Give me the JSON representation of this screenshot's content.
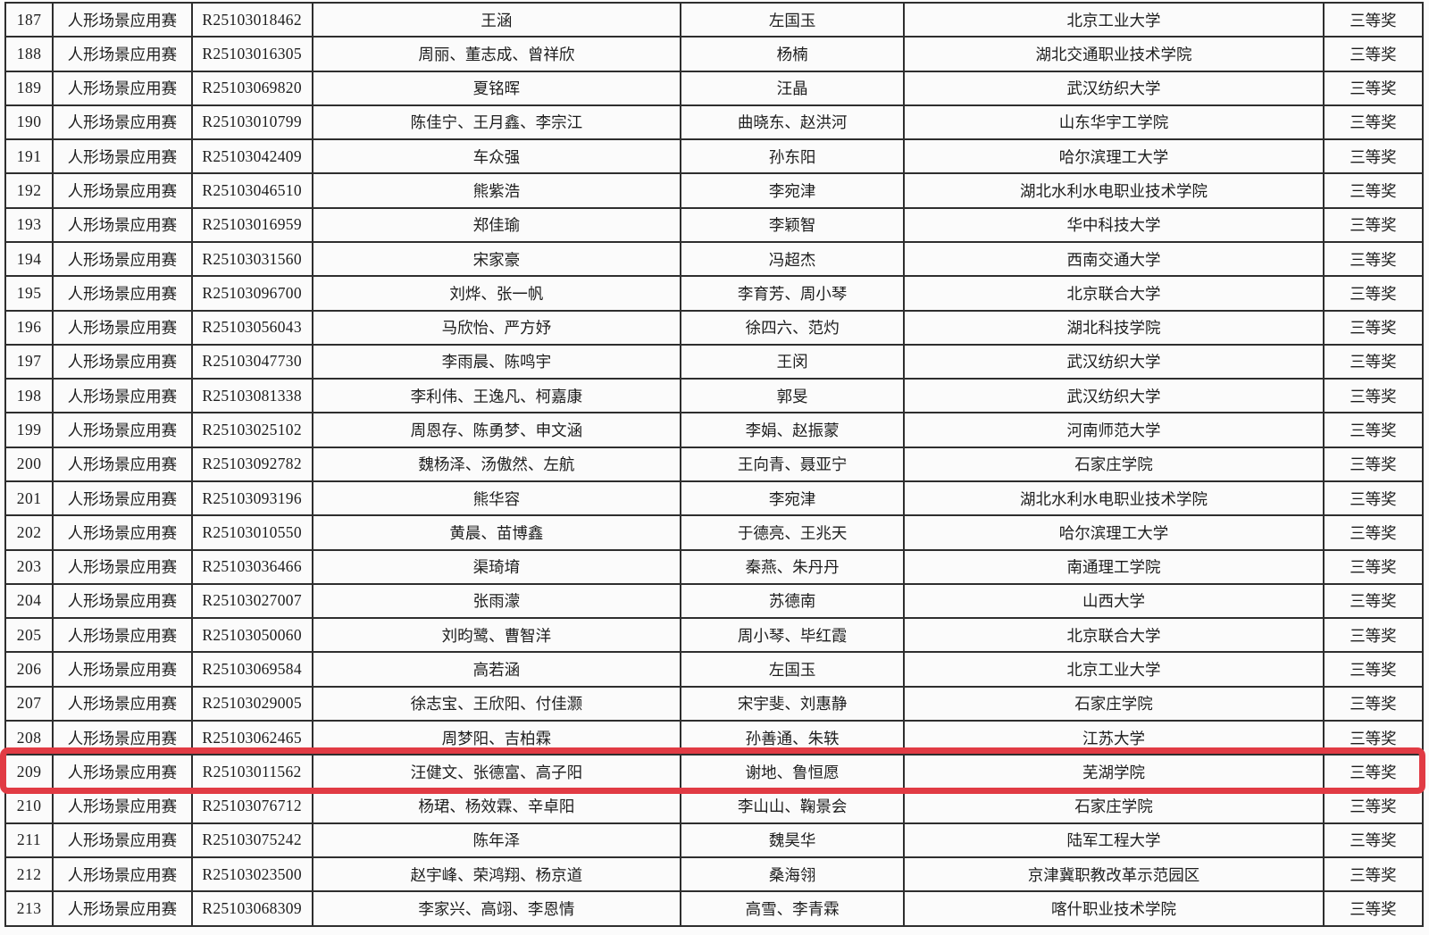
{
  "page": {
    "background_color": "#fbfbfb",
    "border_color": "#2e2e2e",
    "text_color": "#1d1d1d"
  },
  "highlight": {
    "row_no": "209",
    "border_color": "#e13b44"
  },
  "table": {
    "columns": [
      {
        "key": "no",
        "name": "row-number"
      },
      {
        "key": "category",
        "name": "competition-category"
      },
      {
        "key": "id",
        "name": "registration-id"
      },
      {
        "key": "participants",
        "name": "participants"
      },
      {
        "key": "advisors",
        "name": "advisors"
      },
      {
        "key": "institution",
        "name": "institution"
      },
      {
        "key": "award",
        "name": "award"
      }
    ],
    "rows": [
      {
        "no": "187",
        "category": "人形场景应用赛",
        "id": "R25103018462",
        "participants": "王涵",
        "advisors": "左国玉",
        "institution": "北京工业大学",
        "award": "三等奖"
      },
      {
        "no": "188",
        "category": "人形场景应用赛",
        "id": "R25103016305",
        "participants": "周丽、董志成、曾祥欣",
        "advisors": "杨楠",
        "institution": "湖北交通职业技术学院",
        "award": "三等奖"
      },
      {
        "no": "189",
        "category": "人形场景应用赛",
        "id": "R25103069820",
        "participants": "夏铭晖",
        "advisors": "汪晶",
        "institution": "武汉纺织大学",
        "award": "三等奖"
      },
      {
        "no": "190",
        "category": "人形场景应用赛",
        "id": "R25103010799",
        "participants": "陈佳宁、王月鑫、李宗江",
        "advisors": "曲晓东、赵洪河",
        "institution": "山东华宇工学院",
        "award": "三等奖"
      },
      {
        "no": "191",
        "category": "人形场景应用赛",
        "id": "R25103042409",
        "participants": "车众强",
        "advisors": "孙东阳",
        "institution": "哈尔滨理工大学",
        "award": "三等奖"
      },
      {
        "no": "192",
        "category": "人形场景应用赛",
        "id": "R25103046510",
        "participants": "熊紫浩",
        "advisors": "李宛津",
        "institution": "湖北水利水电职业技术学院",
        "award": "三等奖"
      },
      {
        "no": "193",
        "category": "人形场景应用赛",
        "id": "R25103016959",
        "participants": "郑佳瑜",
        "advisors": "李颖智",
        "institution": "华中科技大学",
        "award": "三等奖"
      },
      {
        "no": "194",
        "category": "人形场景应用赛",
        "id": "R25103031560",
        "participants": "宋家豪",
        "advisors": "冯超杰",
        "institution": "西南交通大学",
        "award": "三等奖"
      },
      {
        "no": "195",
        "category": "人形场景应用赛",
        "id": "R25103096700",
        "participants": "刘烨、张一帆",
        "advisors": "李育芳、周小琴",
        "institution": "北京联合大学",
        "award": "三等奖"
      },
      {
        "no": "196",
        "category": "人形场景应用赛",
        "id": "R25103056043",
        "participants": "马欣怡、严方妤",
        "advisors": "徐四六、范灼",
        "institution": "湖北科技学院",
        "award": "三等奖"
      },
      {
        "no": "197",
        "category": "人形场景应用赛",
        "id": "R25103047730",
        "participants": "李雨晨、陈鸣宇",
        "advisors": "王闵",
        "institution": "武汉纺织大学",
        "award": "三等奖"
      },
      {
        "no": "198",
        "category": "人形场景应用赛",
        "id": "R25103081338",
        "participants": "李利伟、王逸凡、柯嘉康",
        "advisors": "郭旻",
        "institution": "武汉纺织大学",
        "award": "三等奖"
      },
      {
        "no": "199",
        "category": "人形场景应用赛",
        "id": "R25103025102",
        "participants": "周恩存、陈勇梦、申文涵",
        "advisors": "李娟、赵振蒙",
        "institution": "河南师范大学",
        "award": "三等奖"
      },
      {
        "no": "200",
        "category": "人形场景应用赛",
        "id": "R25103092782",
        "participants": "魏杨泽、汤傲然、左航",
        "advisors": "王向青、聂亚宁",
        "institution": "石家庄学院",
        "award": "三等奖"
      },
      {
        "no": "201",
        "category": "人形场景应用赛",
        "id": "R25103093196",
        "participants": "熊华容",
        "advisors": "李宛津",
        "institution": "湖北水利水电职业技术学院",
        "award": "三等奖"
      },
      {
        "no": "202",
        "category": "人形场景应用赛",
        "id": "R25103010550",
        "participants": "黄晨、苗博鑫",
        "advisors": "于德亮、王兆天",
        "institution": "哈尔滨理工大学",
        "award": "三等奖"
      },
      {
        "no": "203",
        "category": "人形场景应用赛",
        "id": "R25103036466",
        "participants": "渠琦堉",
        "advisors": "秦燕、朱丹丹",
        "institution": "南通理工学院",
        "award": "三等奖"
      },
      {
        "no": "204",
        "category": "人形场景应用赛",
        "id": "R25103027007",
        "participants": "张雨濛",
        "advisors": "苏德南",
        "institution": "山西大学",
        "award": "三等奖"
      },
      {
        "no": "205",
        "category": "人形场景应用赛",
        "id": "R25103050060",
        "participants": "刘昀鹭、曹智洋",
        "advisors": "周小琴、毕红霞",
        "institution": "北京联合大学",
        "award": "三等奖"
      },
      {
        "no": "206",
        "category": "人形场景应用赛",
        "id": "R25103069584",
        "participants": "高若涵",
        "advisors": "左国玉",
        "institution": "北京工业大学",
        "award": "三等奖"
      },
      {
        "no": "207",
        "category": "人形场景应用赛",
        "id": "R25103029005",
        "participants": "徐志宝、王欣阳、付佳灏",
        "advisors": "宋宇斐、刘惠静",
        "institution": "石家庄学院",
        "award": "三等奖"
      },
      {
        "no": "208",
        "category": "人形场景应用赛",
        "id": "R25103062465",
        "participants": "周梦阳、吉柏霖",
        "advisors": "孙善通、朱轶",
        "institution": "江苏大学",
        "award": "三等奖"
      },
      {
        "no": "209",
        "category": "人形场景应用赛",
        "id": "R25103011562",
        "participants": "汪健文、张德富、高子阳",
        "advisors": "谢地、鲁恒愿",
        "institution": "芜湖学院",
        "award": "三等奖"
      },
      {
        "no": "210",
        "category": "人形场景应用赛",
        "id": "R25103076712",
        "participants": "杨珺、杨效霖、辛卓阳",
        "advisors": "李山山、鞠景会",
        "institution": "石家庄学院",
        "award": "三等奖"
      },
      {
        "no": "211",
        "category": "人形场景应用赛",
        "id": "R25103075242",
        "participants": "陈年泽",
        "advisors": "魏昊华",
        "institution": "陆军工程大学",
        "award": "三等奖"
      },
      {
        "no": "212",
        "category": "人形场景应用赛",
        "id": "R25103023500",
        "participants": "赵宇峰、荣鸿翔、杨京道",
        "advisors": "桑海翎",
        "institution": "京津冀职教改革示范园区",
        "award": "三等奖"
      },
      {
        "no": "213",
        "category": "人形场景应用赛",
        "id": "R25103068309",
        "participants": "李家兴、高翊、李恩情",
        "advisors": "高雪、李青霖",
        "institution": "喀什职业技术学院",
        "award": "三等奖"
      }
    ]
  }
}
